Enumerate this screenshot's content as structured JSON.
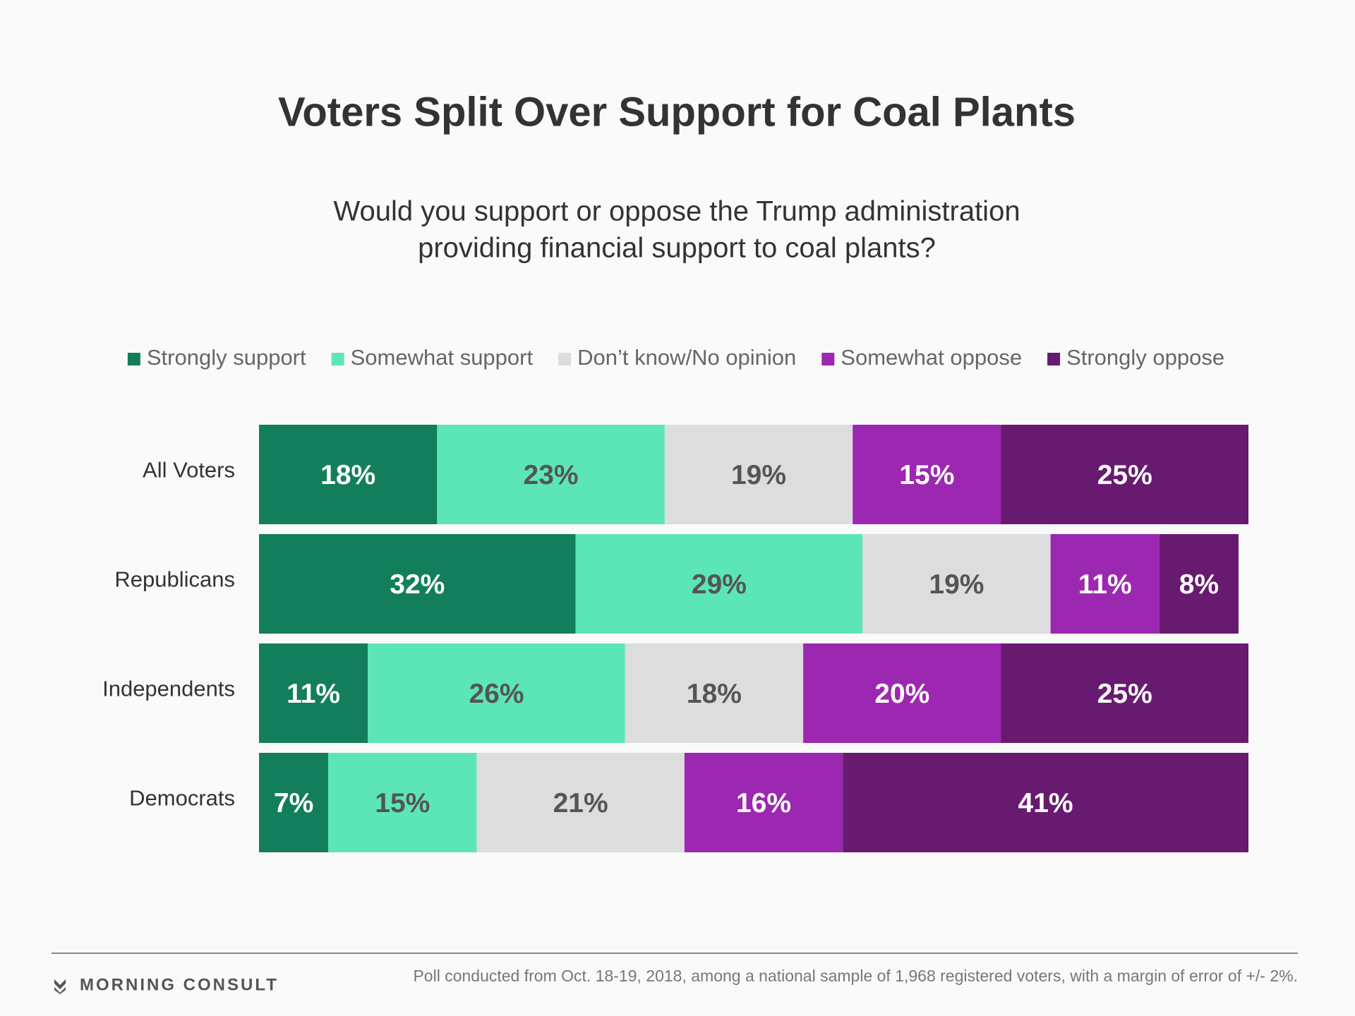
{
  "chart_data": {
    "type": "stacked-bar-horizontal",
    "title": "Voters Split Over Support for Coal Plants",
    "subtitle": [
      "Would you support or oppose the Trump administration",
      "providing financial support to coal plants?"
    ],
    "categories": [
      "All Voters",
      "Republicans",
      "Independents",
      "Democrats"
    ],
    "series": [
      {
        "name": "Strongly support",
        "color": "#137e5c",
        "label_color": "#ffffff",
        "values": [
          18,
          32,
          11,
          7
        ],
        "value_labels": [
          "18%",
          "32%",
          "11%",
          "7%"
        ]
      },
      {
        "name": "Somewhat support",
        "color": "#5ce6b8",
        "label_color": "#555555",
        "values": [
          23,
          29,
          26,
          15
        ],
        "value_labels": [
          "23%",
          "29%",
          "26%",
          "15%"
        ]
      },
      {
        "name": "Don’t know/No opinion",
        "color": "#dddddd",
        "label_color": "#555555",
        "values": [
          19,
          19,
          18,
          21
        ],
        "value_labels": [
          "19%",
          "19%",
          "18%",
          "21%"
        ]
      },
      {
        "name": "Somewhat oppose",
        "color": "#9c27b0",
        "label_color": "#ffffff",
        "values": [
          15,
          11,
          20,
          16
        ],
        "value_labels": [
          "15%",
          "11%",
          "20%",
          "16%"
        ]
      },
      {
        "name": "Strongly oppose",
        "color": "#671a6f",
        "label_color": "#ffffff",
        "values": [
          25,
          8,
          25,
          41
        ],
        "value_labels": [
          "25%",
          "8%",
          "25%",
          "41%"
        ]
      }
    ],
    "xlim": [
      0,
      100
    ],
    "logo_text": "MORNING CONSULT",
    "note": "Poll conducted from Oct. 18-19, 2018, among a national sample of 1,968 registered voters, with a margin of error of +/- 2%."
  }
}
